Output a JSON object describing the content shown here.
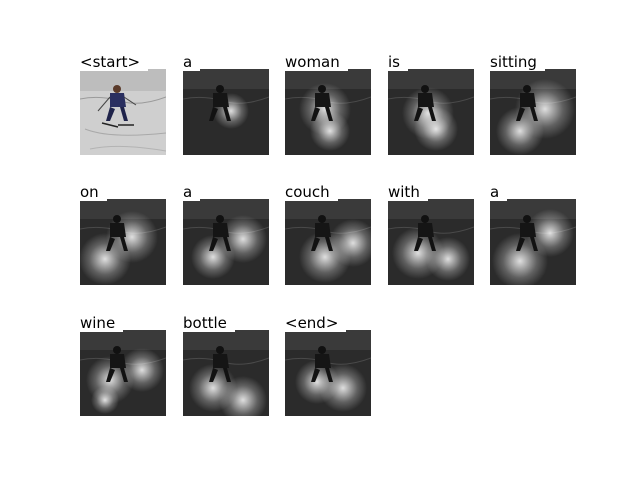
{
  "caption_words": [
    {
      "word": "<start>",
      "style": "photo"
    },
    {
      "word": "a",
      "style": "attn"
    },
    {
      "word": "woman",
      "style": "attn"
    },
    {
      "word": "is",
      "style": "attn"
    },
    {
      "word": "sitting",
      "style": "attn"
    },
    {
      "word": "on",
      "style": "attn"
    },
    {
      "word": "a",
      "style": "attn"
    },
    {
      "word": "couch",
      "style": "attn"
    },
    {
      "word": "with",
      "style": "attn"
    },
    {
      "word": "a",
      "style": "attn"
    },
    {
      "word": "wine",
      "style": "attn"
    },
    {
      "word": "bottle",
      "style": "attn"
    },
    {
      "word": "<end>",
      "style": "attn"
    }
  ]
}
